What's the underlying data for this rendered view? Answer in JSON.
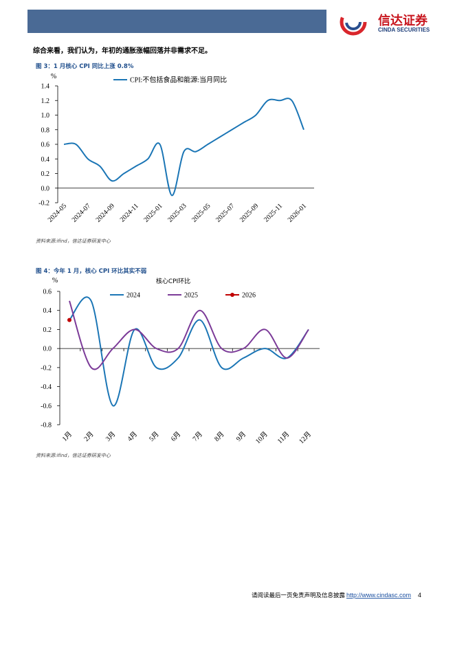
{
  "header": {
    "logo_name": "信达证券",
    "logo_sub": "CINDA SECURITIES"
  },
  "body_text": "综合来看，我们认为，年初的通胀涨幅回落并非需求不足。",
  "figures": [
    {
      "caption": "图 3：1 月核心 CPI 同比上涨 0.8%",
      "source": "资料来源:ifind，信达证券研发中心"
    },
    {
      "caption": "图 4：今年 1 月，核心 CPI 环比其实不弱",
      "source": "资料来源:ifind，信达证券研发中心"
    }
  ],
  "chart_data": [
    {
      "type": "line",
      "y_label": "%",
      "categories": [
        "2024-05",
        null,
        "2024-07",
        null,
        "2024-09",
        null,
        "2024-11",
        null,
        "2025-01",
        null,
        "2025-03",
        null,
        "2025-05",
        null,
        "2025-07",
        null,
        "2025-09",
        null,
        "2025-11",
        null,
        "2026-01"
      ],
      "series": [
        {
          "name": "CPI:不包括食品和能源:当月同比",
          "color": "#1a75b5",
          "values": [
            0.6,
            0.6,
            0.4,
            0.3,
            0.1,
            0.2,
            0.3,
            0.4,
            0.6,
            -0.1,
            0.5,
            0.5,
            0.6,
            0.7,
            0.8,
            0.9,
            1.0,
            1.2,
            1.2,
            1.2,
            0.8
          ]
        }
      ],
      "ylim": [
        -0.2,
        1.4
      ],
      "yticks": [
        -0.2,
        {
          "value": 0,
          "label": "0.0"
        },
        0.2,
        0.4,
        0.6,
        0.8,
        {
          "value": 1,
          "label": "1.0"
        },
        1.2,
        1.4
      ],
      "legend": "top"
    },
    {
      "type": "line",
      "title": "核心CPI环比",
      "y_label": "%",
      "categories": [
        "1月",
        "2月",
        "3月",
        "4月",
        "5月",
        "6月",
        "7月",
        "8月",
        "9月",
        "10月",
        "11月",
        "12月"
      ],
      "series": [
        {
          "name": "2024",
          "color": "#1a75b5",
          "values": [
            0.3,
            0.5,
            -0.6,
            0.2,
            -0.2,
            -0.1,
            0.3,
            -0.2,
            -0.1,
            0.0,
            -0.1,
            0.2
          ]
        },
        {
          "name": "2025",
          "color": "#7b3a98",
          "values": [
            0.5,
            -0.2,
            0.0,
            0.2,
            0.0,
            0.0,
            0.4,
            0.0,
            0.0,
            0.2,
            -0.1,
            0.2
          ]
        },
        {
          "name": "2026",
          "color": "#c00000",
          "markers": true,
          "values": [
            0.3,
            null,
            null,
            null,
            null,
            null,
            null,
            null,
            null,
            null,
            null,
            null
          ]
        }
      ],
      "ylim": [
        -0.8,
        0.6
      ],
      "yticks": [
        -0.8,
        -0.6,
        -0.4,
        -0.2,
        {
          "value": 0,
          "label": "0.0"
        },
        0.2,
        0.4,
        0.6
      ],
      "legend": "top"
    }
  ],
  "footer": {
    "text": "请阅读最后一页免责声明及信息披露",
    "link": "http://www.cindasc.com",
    "page": 4
  }
}
